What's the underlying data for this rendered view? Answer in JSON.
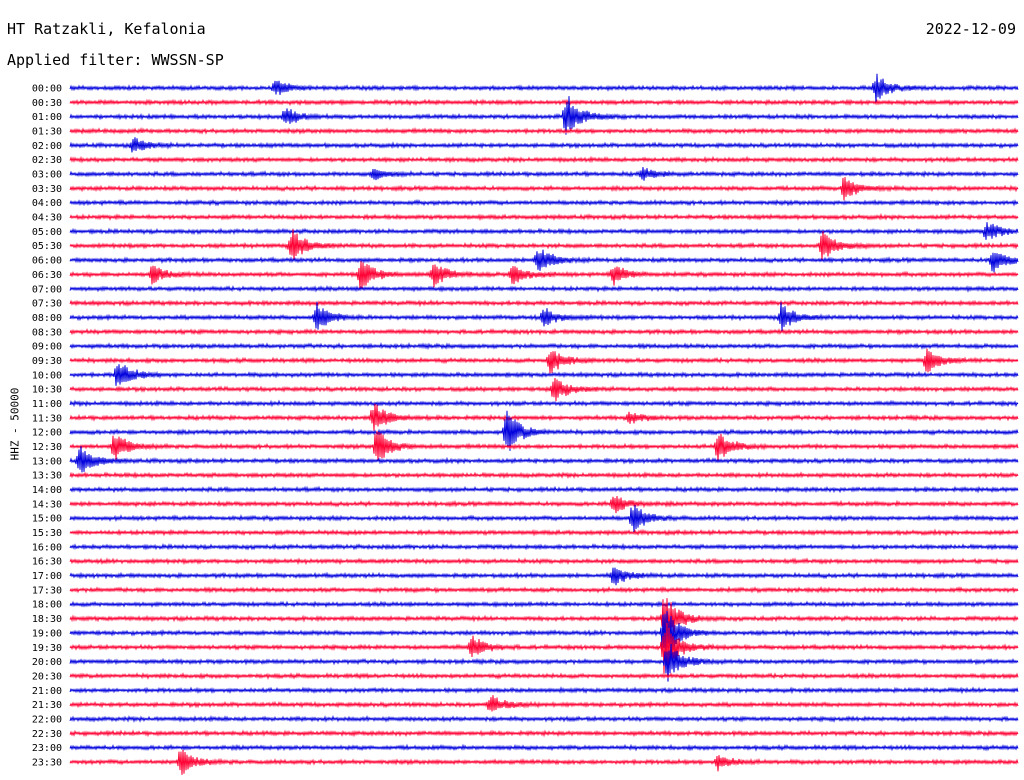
{
  "header": {
    "station": "HT Ratzakli, Kefalonia",
    "date": "2022-12-09",
    "filter_label": "Applied filter: WWSSN-SP"
  },
  "chart_data": {
    "type": "line",
    "ylabel": "HHZ - 50000",
    "row_labels": [
      "00:00",
      "00:30",
      "01:00",
      "01:30",
      "02:00",
      "02:30",
      "03:00",
      "03:30",
      "04:00",
      "04:30",
      "05:00",
      "05:30",
      "06:00",
      "06:30",
      "07:00",
      "07:30",
      "08:00",
      "08:30",
      "09:00",
      "09:30",
      "10:00",
      "10:30",
      "11:00",
      "11:30",
      "12:00",
      "12:30",
      "13:00",
      "13:30",
      "14:00",
      "14:30",
      "15:00",
      "15:30",
      "16:00",
      "16:30",
      "17:00",
      "17:30",
      "18:00",
      "18:30",
      "19:00",
      "19:30",
      "20:00",
      "20:30",
      "21:00",
      "21:30",
      "22:00",
      "22:30",
      "23:00",
      "23:30"
    ],
    "series_colors": {
      "even_rows": "#0000dd",
      "odd_rows": "#ff0033"
    },
    "x_range_minutes": [
      0,
      30
    ],
    "events": [
      {
        "row": "00:00",
        "minute": 6.5,
        "amplitude": 8
      },
      {
        "row": "00:00",
        "minute": 25.5,
        "amplitude": 14
      },
      {
        "row": "01:00",
        "minute": 6.8,
        "amplitude": 10
      },
      {
        "row": "01:00",
        "minute": 15.7,
        "amplitude": 24
      },
      {
        "row": "02:00",
        "minute": 2.0,
        "amplitude": 8
      },
      {
        "row": "03:00",
        "minute": 9.6,
        "amplitude": 5
      },
      {
        "row": "03:00",
        "minute": 18.1,
        "amplitude": 6
      },
      {
        "row": "03:30",
        "minute": 24.5,
        "amplitude": 12
      },
      {
        "row": "05:00",
        "minute": 29.0,
        "amplitude": 10
      },
      {
        "row": "05:30",
        "minute": 7.0,
        "amplitude": 18
      },
      {
        "row": "05:30",
        "minute": 23.8,
        "amplitude": 16
      },
      {
        "row": "06:00",
        "minute": 14.8,
        "amplitude": 15
      },
      {
        "row": "06:00",
        "minute": 29.2,
        "amplitude": 12
      },
      {
        "row": "06:30",
        "minute": 2.6,
        "amplitude": 9
      },
      {
        "row": "06:30",
        "minute": 9.2,
        "amplitude": 16
      },
      {
        "row": "06:30",
        "minute": 11.5,
        "amplitude": 13
      },
      {
        "row": "06:30",
        "minute": 14.0,
        "amplitude": 12
      },
      {
        "row": "06:30",
        "minute": 17.2,
        "amplitude": 10
      },
      {
        "row": "08:00",
        "minute": 7.8,
        "amplitude": 15
      },
      {
        "row": "08:00",
        "minute": 15.0,
        "amplitude": 10
      },
      {
        "row": "08:00",
        "minute": 22.5,
        "amplitude": 14
      },
      {
        "row": "09:30",
        "minute": 15.2,
        "amplitude": 14
      },
      {
        "row": "09:30",
        "minute": 27.1,
        "amplitude": 12
      },
      {
        "row": "10:00",
        "minute": 1.5,
        "amplitude": 16
      },
      {
        "row": "10:30",
        "minute": 15.3,
        "amplitude": 14
      },
      {
        "row": "11:30",
        "minute": 9.6,
        "amplitude": 16
      },
      {
        "row": "11:30",
        "minute": 17.7,
        "amplitude": 6
      },
      {
        "row": "12:00",
        "minute": 13.8,
        "amplitude": 24
      },
      {
        "row": "12:30",
        "minute": 1.4,
        "amplitude": 14
      },
      {
        "row": "12:30",
        "minute": 9.7,
        "amplitude": 18
      },
      {
        "row": "12:30",
        "minute": 20.5,
        "amplitude": 16
      },
      {
        "row": "13:00",
        "minute": 0.3,
        "amplitude": 16
      },
      {
        "row": "14:30",
        "minute": 17.2,
        "amplitude": 10
      },
      {
        "row": "15:00",
        "minute": 17.8,
        "amplitude": 16
      },
      {
        "row": "17:00",
        "minute": 17.2,
        "amplitude": 10
      },
      {
        "row": "18:30",
        "minute": 18.8,
        "amplitude": 28
      },
      {
        "row": "19:00",
        "minute": 18.8,
        "amplitude": 30
      },
      {
        "row": "19:30",
        "minute": 12.7,
        "amplitude": 12
      },
      {
        "row": "19:30",
        "minute": 18.8,
        "amplitude": 30
      },
      {
        "row": "20:00",
        "minute": 18.9,
        "amplitude": 22
      },
      {
        "row": "21:30",
        "minute": 13.3,
        "amplitude": 10
      },
      {
        "row": "23:30",
        "minute": 3.5,
        "amplitude": 14
      },
      {
        "row": "23:30",
        "minute": 20.5,
        "amplitude": 8
      }
    ]
  }
}
